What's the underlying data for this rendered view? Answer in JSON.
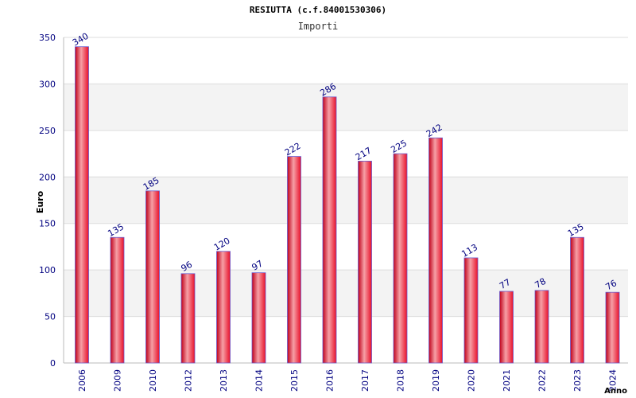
{
  "chart_data": {
    "type": "bar",
    "title": "RESIUTTA (c.f.84001530306)",
    "subtitle": "Importi",
    "xlabel": "Anno",
    "ylabel": "Euro",
    "ylim": [
      0,
      350
    ],
    "yticks": [
      0,
      50,
      100,
      150,
      200,
      250,
      300,
      350
    ],
    "grid": true,
    "categories": [
      "2006",
      "2009",
      "2010",
      "2012",
      "2013",
      "2014",
      "2015",
      "2016",
      "2017",
      "2018",
      "2019",
      "2020",
      "2021",
      "2022",
      "2023",
      "2024"
    ],
    "values": [
      340,
      135,
      185,
      96,
      120,
      97,
      222,
      286,
      217,
      225,
      242,
      113,
      77,
      78,
      135,
      76
    ],
    "colors": {
      "bar": "#e8102a",
      "bar_highlight": "#f08a90",
      "bar_edge": "#6a5acd",
      "label": "#000080",
      "tick": "#000080"
    }
  }
}
